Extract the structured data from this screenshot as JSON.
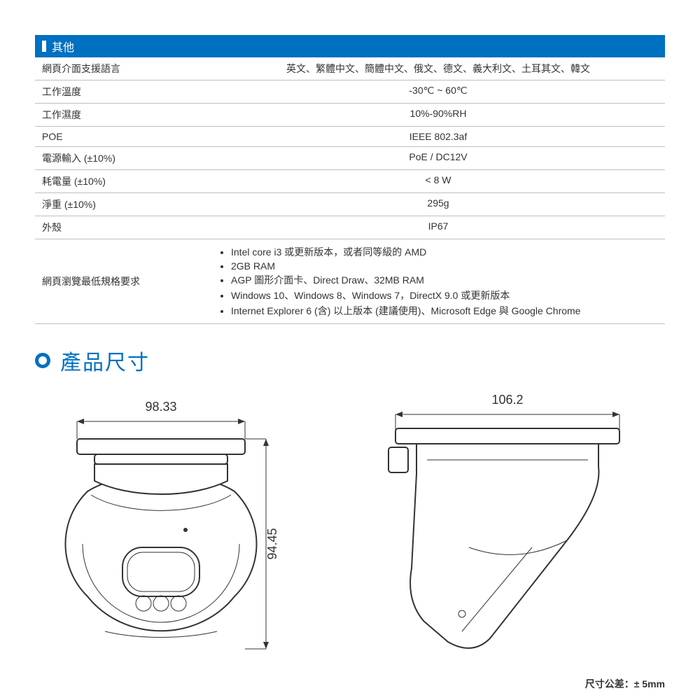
{
  "section": {
    "title": "其他"
  },
  "rows": [
    {
      "label": "網頁介面支援語言",
      "value": "英文、繁體中文、簡體中文、俄文、德文、義大利文、土耳其文、韓文"
    },
    {
      "label": "工作溫度",
      "value": "-30℃ ~ 60℃"
    },
    {
      "label": "工作濕度",
      "value": "10%-90%RH"
    },
    {
      "label": "POE",
      "value": "IEEE 802.3af"
    },
    {
      "label": "電源輸入 (±10%)",
      "value": "PoE / DC12V"
    },
    {
      "label": "耗電量 (±10%)",
      "value": "< 8 W"
    },
    {
      "label": "淨重 (±10%)",
      "value": "295g"
    },
    {
      "label": "外殼",
      "value": "IP67"
    }
  ],
  "reqRow": {
    "label": "網頁瀏覽最低規格要求",
    "items": [
      "Intel core i3 或更新版本，或者同等級的 AMD",
      "2GB RAM",
      "AGP 圖形介面卡、Direct Draw、32MB RAM",
      "Windows 10、Windows 8、Windows 7，DirectX 9.0 或更新版本",
      "Internet Explorer 6 (含) 以上版本 (建議使用)、Microsoft Edge 與 Google Chrome"
    ]
  },
  "dimTitle": "產品尺寸",
  "dims": {
    "front_width": "98.33",
    "front_height": "94.45",
    "side_width": "106.2"
  },
  "tolerance": "尺寸公差：± 5mm",
  "style": {
    "header_bg": "#0070c0",
    "header_fg": "#ffffff",
    "accent": "#0070c0",
    "border": "#bfbfbf",
    "text": "#333333",
    "bg": "#ffffff",
    "label_fontsize": 14,
    "title_fontsize": 30,
    "dim_fontsize": 18
  }
}
